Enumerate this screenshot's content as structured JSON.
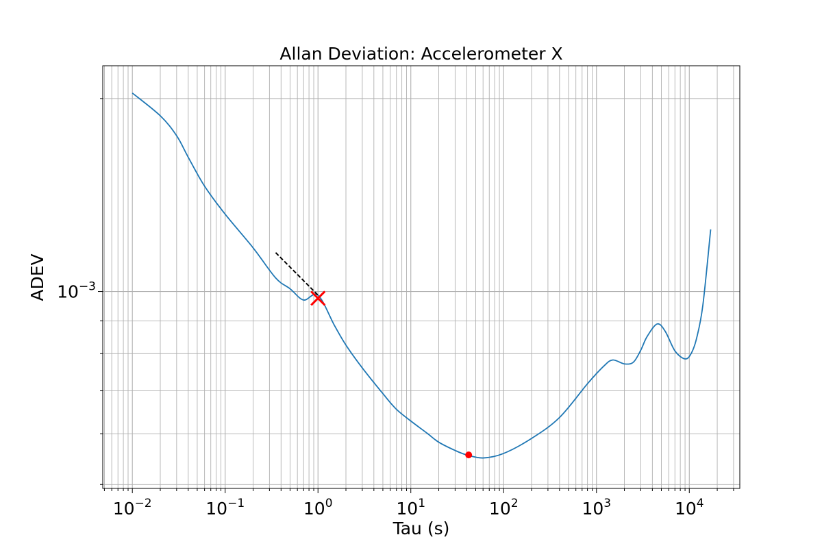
{
  "chart_data": {
    "type": "line",
    "title": "Allan Deviation: Accelerometer X",
    "xlabel": "Tau (s)",
    "ylabel": "ADEV",
    "x_scale": "log",
    "y_scale": "log",
    "xlim": [
      0.0048,
      35000
    ],
    "ylim": [
      0.000493,
      0.00225
    ],
    "grid": "both-major-minor",
    "x_ticks": [
      {
        "value": 0.01,
        "base": "10",
        "exp": "−2"
      },
      {
        "value": 0.1,
        "base": "10",
        "exp": "−1"
      },
      {
        "value": 1,
        "base": "10",
        "exp": "0"
      },
      {
        "value": 10,
        "base": "10",
        "exp": "1"
      },
      {
        "value": 100,
        "base": "10",
        "exp": "2"
      },
      {
        "value": 1000,
        "base": "10",
        "exp": "3"
      },
      {
        "value": 10000,
        "base": "10",
        "exp": "4"
      }
    ],
    "y_ticks": [
      {
        "value": 0.001,
        "base": "10",
        "exp": "−3"
      }
    ],
    "series": [
      {
        "color": "#1f77b4",
        "style": "solid",
        "x": [
          0.01,
          0.02,
          0.03,
          0.04,
          0.06,
          0.1,
          0.2,
          0.35,
          0.5,
          0.7,
          1.0,
          1.5,
          2.0,
          3.0,
          5.0,
          7.0,
          10,
          15,
          20,
          30,
          40,
          60,
          100,
          200,
          400,
          800,
          1200,
          1500,
          2000,
          2500,
          3000,
          3500,
          4500,
          5500,
          7000,
          9000,
          10500,
          12000,
          14000,
          17000
        ],
        "y": [
          0.00204,
          0.00188,
          0.00175,
          0.00162,
          0.00146,
          0.00132,
          0.00117,
          0.00105,
          0.00101,
          0.00097,
          0.000987,
          0.000886,
          0.000825,
          0.00076,
          0.000693,
          0.000655,
          0.000628,
          0.000601,
          0.000582,
          0.000565,
          0.000556,
          0.00055,
          0.000559,
          0.00059,
          0.000636,
          0.000718,
          0.000765,
          0.000782,
          0.000771,
          0.000776,
          0.00081,
          0.00085,
          0.00089,
          0.000867,
          0.000808,
          0.000785,
          0.000801,
          0.000846,
          0.000952,
          0.00125
        ]
      },
      {
        "color": "#000000",
        "style": "dashed",
        "x": [
          0.35,
          1.0
        ],
        "y": [
          0.00115,
          0.000987
        ]
      }
    ],
    "markers": [
      {
        "x": 1.0,
        "y": 0.000976,
        "shape": "x",
        "color": "#ff0000"
      },
      {
        "x": 42,
        "y": 0.000556,
        "shape": "circle",
        "color": "#ff0000"
      }
    ]
  }
}
